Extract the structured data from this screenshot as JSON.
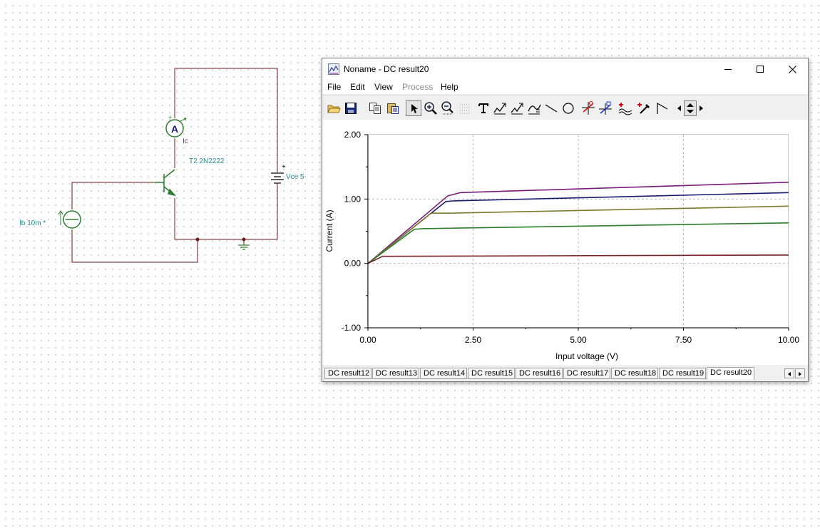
{
  "schematic": {
    "ammeter_symbol": "A",
    "ammeter_label": "Ic",
    "transistor_label": "T2 2N2222",
    "battery_label": "Vce 5",
    "source_label": "Ib 10m *",
    "plus_sign": "+"
  },
  "window": {
    "title": "Noname - DC result20",
    "menu": [
      "File",
      "Edit",
      "View",
      "Process",
      "Help"
    ],
    "toolbar_icons": [
      "open-icon",
      "save-icon",
      "copy-icon",
      "paste-icon",
      "pointer-icon",
      "zoom-in-icon",
      "zoom-out-icon",
      "grid-icon",
      "text-icon",
      "pen-a-icon",
      "pen-b-icon",
      "curve-icon",
      "line-icon",
      "circle-icon",
      "cursor-a-icon",
      "cursor-b-icon",
      "markers-icon",
      "probe-icon",
      "step-icon",
      "arrow-left-icon",
      "arrow-updown-icon",
      "arrow-right-icon"
    ],
    "tabs": [
      "DC result12",
      "DC result13",
      "DC result14",
      "DC result15",
      "DC result16",
      "DC result17",
      "DC result18",
      "DC result19",
      "DC result20"
    ],
    "active_tab": "DC result20"
  },
  "chart_data": {
    "type": "line",
    "title": "",
    "xlabel": "Input voltage (V)",
    "ylabel": "Current (A)",
    "xlim": [
      0,
      10
    ],
    "ylim": [
      -1,
      2
    ],
    "xticks": [
      0,
      2.5,
      5,
      7.5,
      10
    ],
    "xtick_labels": [
      "0.00",
      "2.50",
      "5.00",
      "7.50",
      "10.00"
    ],
    "yticks": [
      -1,
      0,
      1,
      2
    ],
    "ytick_labels": [
      "-1.00",
      "0.00",
      "1.00",
      "2.00"
    ],
    "grid": true,
    "series": [
      {
        "color": "#7a1a7a",
        "x": [
          0,
          1.9,
          2.2,
          10
        ],
        "y": [
          0,
          1.05,
          1.1,
          1.26
        ]
      },
      {
        "color": "#1a1a72",
        "x": [
          0,
          1.85,
          2.0,
          10
        ],
        "y": [
          0,
          0.96,
          0.97,
          1.1
        ]
      },
      {
        "color": "#7a7a2a",
        "x": [
          0,
          1.5,
          1.9,
          10
        ],
        "y": [
          0,
          0.78,
          0.78,
          0.89
        ]
      },
      {
        "color": "#2e7d2e",
        "x": [
          0,
          1.1,
          1.3,
          10
        ],
        "y": [
          0,
          0.53,
          0.54,
          0.63
        ]
      },
      {
        "color": "#7a2222",
        "x": [
          0,
          0.35,
          0.5,
          10
        ],
        "y": [
          0,
          0.11,
          0.11,
          0.13
        ]
      }
    ]
  }
}
